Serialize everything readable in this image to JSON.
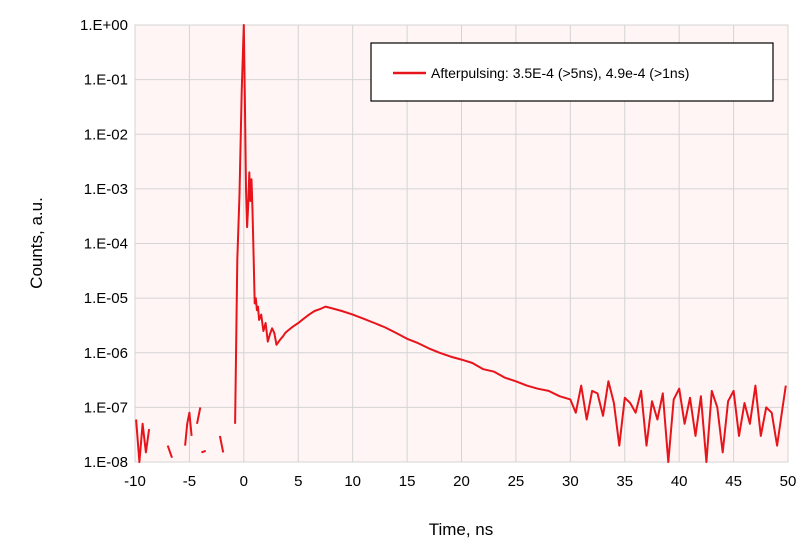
{
  "chart_data": {
    "type": "line",
    "xlabel": "Time, ns",
    "ylabel": "Counts, a.u.",
    "xlim": [
      -10,
      50
    ],
    "ylim": [
      1e-08,
      1
    ],
    "yscale": "log",
    "grid": true,
    "legend_position": "top-right",
    "x_ticks": [
      -10,
      -5,
      0,
      5,
      10,
      15,
      20,
      25,
      30,
      35,
      40,
      45,
      50
    ],
    "x_tick_labels": [
      "-10",
      "-5",
      "0",
      "5",
      "10",
      "15",
      "20",
      "25",
      "30",
      "35",
      "40",
      "45",
      "50"
    ],
    "y_ticks": [
      1e-08,
      1e-07,
      1e-06,
      1e-05,
      0.0001,
      0.001,
      0.01,
      0.1,
      1
    ],
    "y_tick_labels": [
      "1.E-08",
      "1.E-07",
      "1.E-06",
      "1.E-05",
      "1.E-04",
      "1.E-03",
      "1.E-02",
      "1.E-01",
      "1.E+00"
    ],
    "series": [
      {
        "name": "Afterpulsing: 3.5E-4 (>5ns),  4.9e-4 (>1ns)",
        "color": "#e8141b",
        "segments": [
          {
            "x": [
              -9.9,
              -9.6,
              -9.3,
              -9.0,
              -8.7
            ],
            "y": [
              6e-08,
              1e-08,
              5e-08,
              1.5e-08,
              4e-08
            ]
          },
          {
            "x": [
              -7.0,
              -6.6
            ],
            "y": [
              2e-08,
              1.2e-08
            ]
          },
          {
            "x": [
              -5.4,
              -5.2,
              -5.0,
              -4.8
            ],
            "y": [
              2e-08,
              5e-08,
              8e-08,
              3e-08
            ]
          },
          {
            "x": [
              -4.3,
              -4.0
            ],
            "y": [
              5e-08,
              1e-07
            ]
          },
          {
            "x": [
              -3.9,
              -3.5
            ],
            "y": [
              1.5e-08,
              1.6e-08
            ]
          },
          {
            "x": [
              -2.2,
              -1.9
            ],
            "y": [
              3e-08,
              1.5e-08
            ]
          },
          {
            "x": [
              -0.8,
              -0.6,
              -0.4,
              -0.2,
              0.0,
              0.1,
              0.2,
              0.3,
              0.4,
              0.5,
              0.6,
              0.7,
              0.8,
              0.9,
              1.0,
              1.1,
              1.2,
              1.3,
              1.4,
              1.6,
              1.8,
              2.0,
              2.2,
              2.4,
              2.6,
              2.8,
              3.0,
              3.2,
              3.4,
              3.6,
              3.8,
              4.0,
              4.5,
              5.0,
              5.5,
              6.0,
              6.5,
              7.0,
              7.5,
              8.0,
              9.0,
              10.0,
              11.0,
              12.0,
              13.0,
              14.0,
              15.0,
              16.0,
              17.0,
              18.0,
              19.0,
              20.0,
              21.0,
              22.0,
              23.0,
              24.0,
              25.0,
              26.0,
              27.0,
              28.0,
              29.0,
              30.0,
              30.5,
              31.0,
              31.5,
              32.0,
              32.5,
              33.0,
              33.5,
              34.0,
              34.5,
              35.0,
              35.5,
              36.0,
              36.5,
              37.0,
              37.5,
              38.0,
              38.5,
              39.0,
              39.5,
              40.0,
              40.5,
              41.0,
              41.5,
              42.0,
              42.5,
              43.0,
              43.5,
              44.0,
              44.5,
              45.0,
              45.5,
              46.0,
              46.5,
              47.0,
              47.5,
              48.0,
              48.5,
              49.0,
              49.5,
              49.8
            ],
            "y": [
              5e-08,
              5e-05,
              0.0008,
              0.06,
              1.0,
              0.04,
              0.001,
              0.0002,
              0.0005,
              0.002,
              0.0006,
              0.0015,
              0.0004,
              6e-05,
              8e-06,
              1e-05,
              6e-06,
              7e-06,
              4e-06,
              5e-06,
              2.5e-06,
              3.5e-06,
              1.6e-06,
              2.2e-06,
              2.8e-06,
              2.3e-06,
              1.4e-06,
              1.6e-06,
              1.8e-06,
              2e-06,
              2.3e-06,
              2.5e-06,
              3e-06,
              3.5e-06,
              4.2e-06,
              5e-06,
              5.8e-06,
              6.3e-06,
              7e-06,
              6.6e-06,
              5.8e-06,
              5e-06,
              4.2e-06,
              3.5e-06,
              2.9e-06,
              2.3e-06,
              1.8e-06,
              1.5e-06,
              1.2e-06,
              1e-06,
              8.5e-07,
              7.5e-07,
              6.5e-07,
              5e-07,
              4.5e-07,
              3.5e-07,
              3e-07,
              2.5e-07,
              2.2e-07,
              2e-07,
              1.6e-07,
              1.4e-07,
              8e-08,
              2.5e-07,
              6e-08,
              2e-07,
              1.8e-07,
              7e-08,
              3e-07,
              1.2e-07,
              2e-08,
              1.5e-07,
              1.2e-07,
              8e-08,
              2e-07,
              2e-08,
              1.3e-07,
              6e-08,
              1.8e-07,
              1e-08,
              1.4e-07,
              2.2e-07,
              5e-08,
              1.5e-07,
              3e-08,
              1.6e-07,
              1e-08,
              2e-07,
              1e-07,
              1.5e-08,
              1.3e-07,
              2e-07,
              3e-08,
              1.2e-07,
              5e-08,
              2.5e-07,
              3e-08,
              1e-07,
              8e-08,
              2e-08,
              1e-07,
              2.5e-07
            ]
          }
        ]
      }
    ]
  }
}
